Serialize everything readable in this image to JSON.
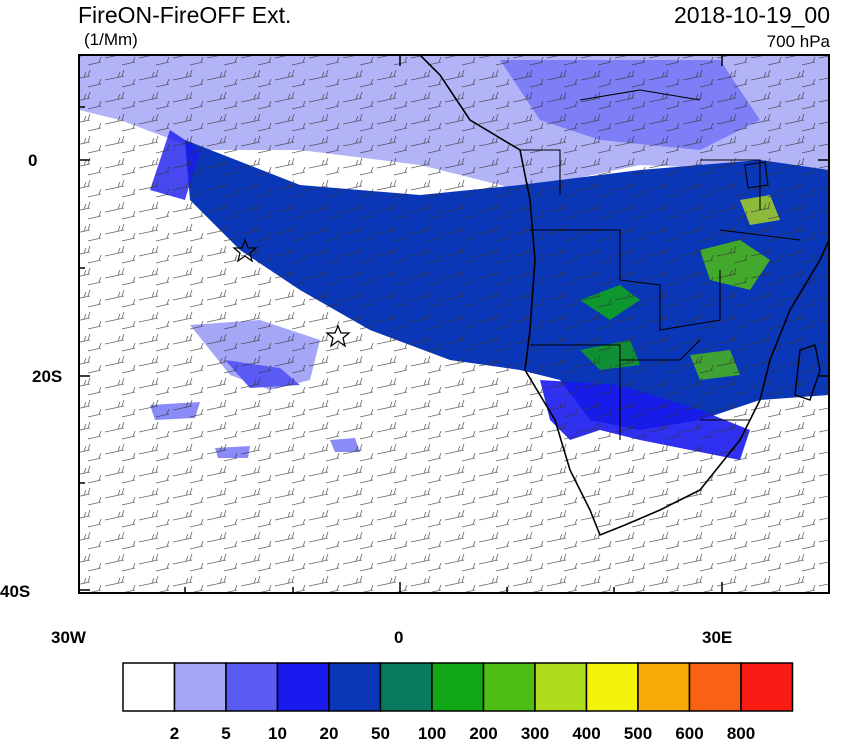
{
  "header": {
    "title": "FireON-FireOFF Ext.",
    "units": "(1/Mm)",
    "datetime": "2018-10-19_00",
    "level": "700 hPa"
  },
  "axes": {
    "lat_labels": [
      "0",
      "20S",
      "40S"
    ],
    "lon_labels": [
      "30W",
      "0",
      "30E"
    ]
  },
  "colorbar": {
    "colors": [
      "#ffffff",
      "#a6a6f7",
      "#5a5af5",
      "#1a1aee",
      "#0a36b8",
      "#0a7a5e",
      "#10a816",
      "#4ebd14",
      "#aedc1c",
      "#f2f20a",
      "#f9aa06",
      "#f86212",
      "#f81b14"
    ],
    "labels": [
      "2",
      "5",
      "10",
      "20",
      "50",
      "100",
      "200",
      "300",
      "400",
      "500",
      "600",
      "800"
    ]
  },
  "markers": [
    "star",
    "star"
  ]
}
